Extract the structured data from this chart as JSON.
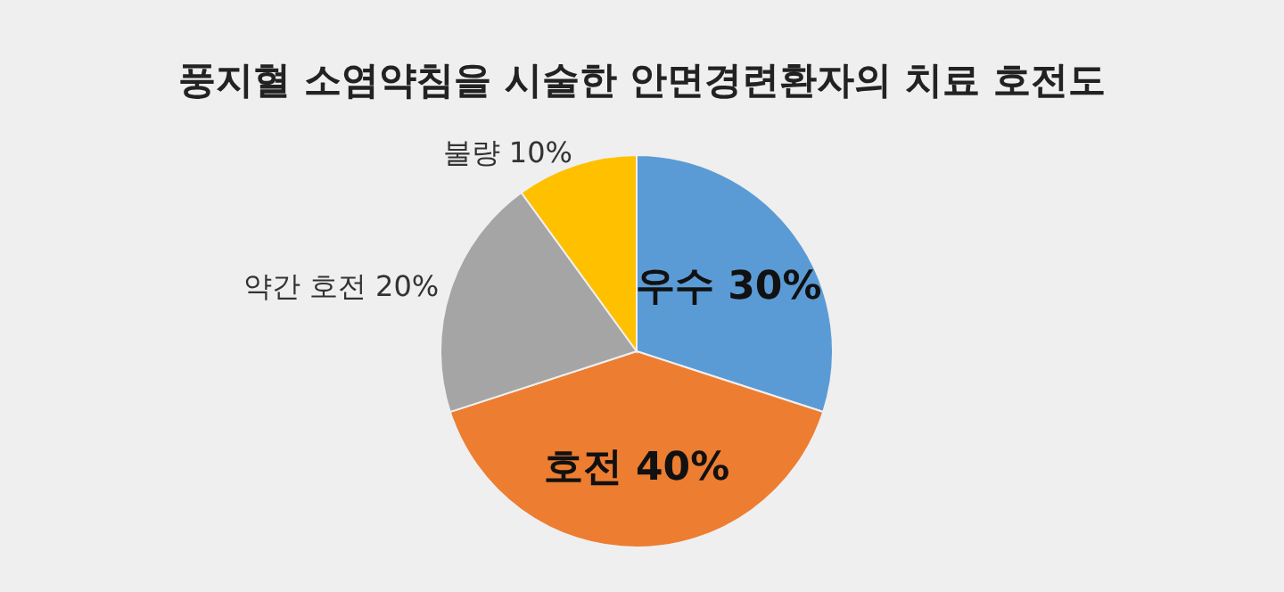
{
  "chart_data": {
    "type": "pie",
    "title": "풍지혈 소염약침을 시술한 안면경련환자의 치료 호전도",
    "categories": [
      "우수",
      "호전",
      "약간 호전",
      "불량"
    ],
    "values": [
      30,
      40,
      20,
      10
    ],
    "value_labels": [
      "30%",
      "40%",
      "20%",
      "10%"
    ],
    "colors": [
      "#5b9bd5",
      "#ed7d31",
      "#a5a5a5",
      "#ffc000"
    ]
  }
}
